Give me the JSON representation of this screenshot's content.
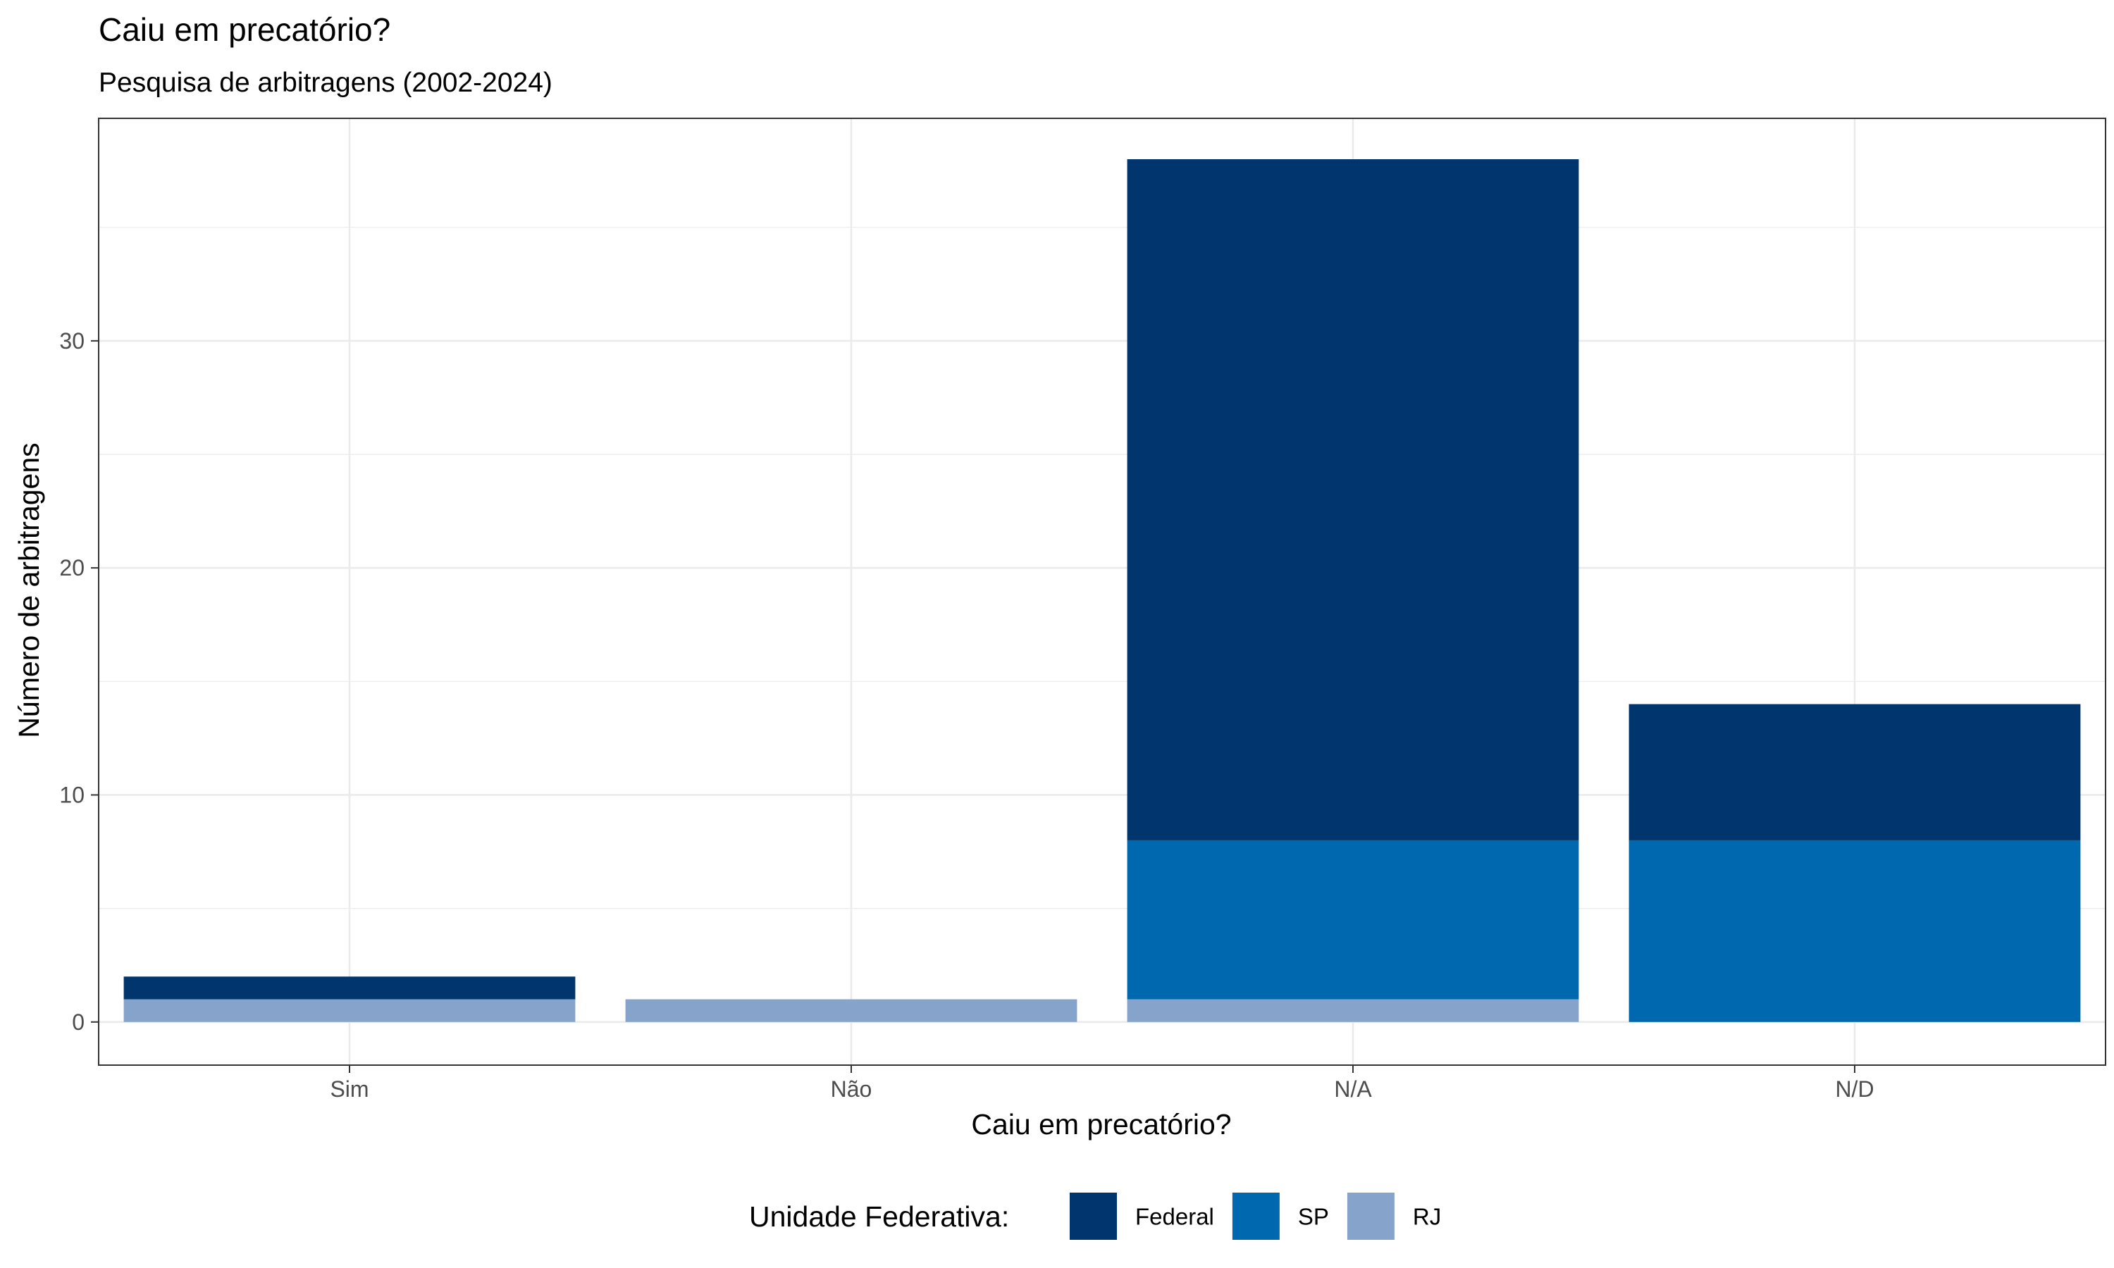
{
  "chart_data": {
    "type": "bar",
    "stacked": true,
    "title": "Caiu em precatório?",
    "subtitle": "Pesquisa de arbitragens (2002-2024)",
    "xlabel": "Caiu em precatório?",
    "ylabel": "Número de arbitragens",
    "categories": [
      "Sim",
      "Não",
      "N/A",
      "N/D"
    ],
    "ylim": [
      -1.9,
      39.8
    ],
    "yticks": [
      0,
      10,
      20,
      30
    ],
    "grid": true,
    "legend": {
      "title": "Unidade Federativa:",
      "position": "bottom"
    },
    "series": [
      {
        "name": "RJ",
        "color": "#85A3CB",
        "values": [
          1,
          1,
          1,
          0
        ]
      },
      {
        "name": "SP",
        "color": "#0068AE",
        "values": [
          0,
          0,
          7,
          8
        ]
      },
      {
        "name": "Federal",
        "color": "#00366D",
        "values": [
          1,
          0,
          30,
          6
        ]
      }
    ],
    "legend_order": [
      "Federal",
      "SP",
      "RJ"
    ]
  }
}
